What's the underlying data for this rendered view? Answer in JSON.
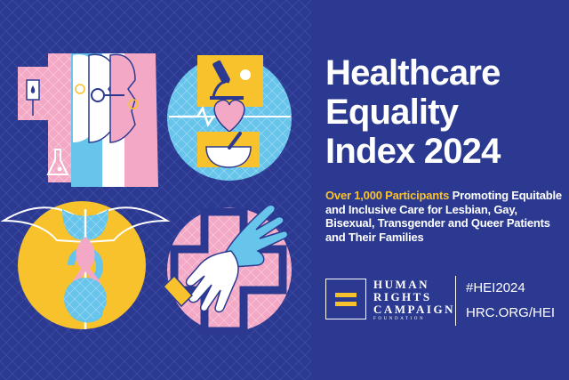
{
  "title": {
    "line1": "Healthcare",
    "line2": "Equality",
    "line3": "Index 2024"
  },
  "subtitle": {
    "highlight": "Over 1,000 Participants",
    "rest": " Promoting Equitable and Inclusive Care for Lesbian, Gay, Bisexual, Transgender and Queer Patients and Their Families"
  },
  "org": {
    "line1": "HUMAN",
    "line2": "RIGHTS",
    "line3": "CAMPAIGN",
    "line4": "FOUNDATION",
    "hashtag": "#HEI2024",
    "url": "HRC.ORG/HEI"
  },
  "colors": {
    "background": "#2b3990",
    "accent": "#f7c22c",
    "pink": "#f3a9c6",
    "light_blue": "#67c4ea",
    "white": "#ffffff"
  },
  "illustrations": [
    "medical-faces-icon",
    "microscope-heart-icon",
    "caduceus-ribbon-icon",
    "hands-cross-icon"
  ]
}
